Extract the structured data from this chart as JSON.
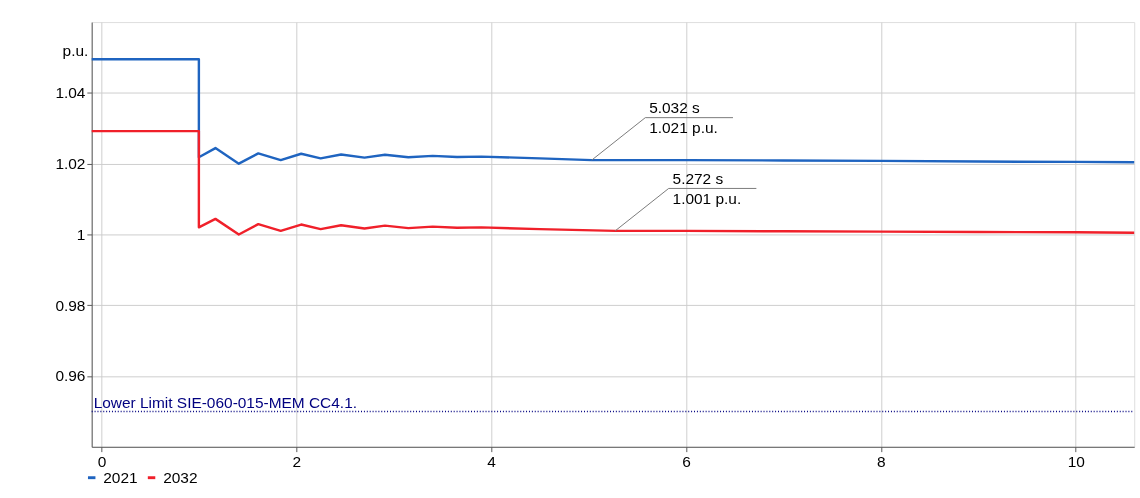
{
  "chart_data": {
    "type": "line",
    "ylabel": "p.u.",
    "xlim": [
      -0.1,
      10.6
    ],
    "xticks": [
      0,
      2,
      4,
      6,
      8,
      10
    ],
    "ylim": [
      0.94,
      1.06
    ],
    "yticks": [
      0.96,
      0.98,
      1,
      1.02,
      1.04
    ],
    "grid": true,
    "legend": "bottom left",
    "line_style": "solid",
    "marker": "none",
    "series": [
      {
        "name": "2021",
        "color": "#1f64c0",
        "x": [
          -0.1,
          1.0,
          1.0,
          1.17,
          1.41,
          1.61,
          1.84,
          2.05,
          2.25,
          2.46,
          2.7,
          2.91,
          3.15,
          3.4,
          3.65,
          3.9,
          4.5,
          5.032,
          6,
          7,
          8,
          9,
          10,
          10.6
        ],
        "values": [
          1.0495,
          1.0495,
          1.0218,
          1.0244,
          1.02,
          1.0229,
          1.021,
          1.0228,
          1.0215,
          1.0226,
          1.0217,
          1.0225,
          1.0218,
          1.0222,
          1.0219,
          1.022,
          1.0215,
          1.021,
          1.021,
          1.0209,
          1.0208,
          1.0206,
          1.0205,
          1.0204
        ]
      },
      {
        "name": "2032",
        "color": "#f0202a",
        "x": [
          -0.1,
          1.0,
          1.0,
          1.17,
          1.41,
          1.61,
          1.84,
          2.05,
          2.25,
          2.46,
          2.7,
          2.91,
          3.15,
          3.4,
          3.65,
          3.9,
          4.5,
          5.272,
          6,
          7,
          8,
          9,
          10,
          10.6
        ],
        "values": [
          1.0292,
          1.0292,
          1.002,
          1.0044,
          1.0,
          1.0029,
          1.001,
          1.0028,
          1.0015,
          1.0026,
          1.0017,
          1.0025,
          1.0018,
          1.0022,
          1.0019,
          1.002,
          1.0015,
          1.001,
          1.001,
          1.0009,
          1.0008,
          1.0007,
          1.0006,
          1.0005
        ]
      }
    ],
    "ref_lines": [
      {
        "axis": "y",
        "value": 0.95,
        "label": "Lower Limit SIE-060-015-MEM CC4.1.",
        "color": "#000080",
        "line_style": "dotted"
      }
    ],
    "annotations": [
      {
        "text": "5.032 s\n1.021 p.u.",
        "x": 5.032,
        "y": 1.021
      },
      {
        "text": "5.272 s\n1.001 p.u.",
        "x": 5.272,
        "y": 1.001
      }
    ]
  }
}
